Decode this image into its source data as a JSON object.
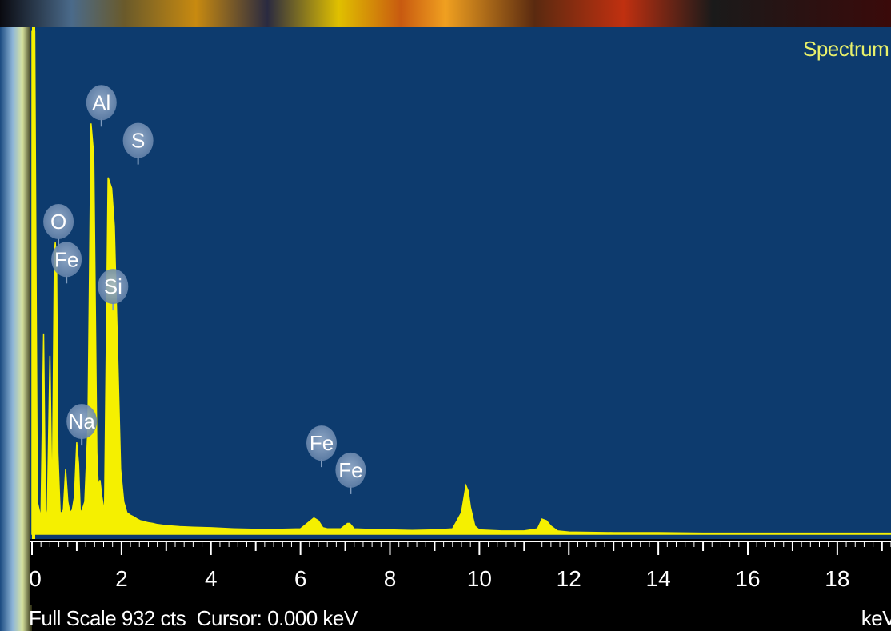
{
  "spectrum_label": "Spectrum",
  "footer": {
    "full_scale_text": "Full Scale 932 cts",
    "cursor_text": "Cursor: 0.000 keV",
    "unit_text": "keV"
  },
  "colors": {
    "plot_background": "#0d3b6e",
    "spectrum_fill": "#f5f000",
    "spectrum_label": "#e8f06a",
    "tag_fill": "#7f9bbd",
    "axis_text": "#ffffff"
  },
  "chart_data": {
    "type": "area",
    "title": "",
    "xlabel": "keV",
    "ylabel": "",
    "xlim": [
      0,
      19.2
    ],
    "ylim": [
      0,
      932
    ],
    "x_ticks": [
      0,
      2,
      4,
      6,
      8,
      10,
      12,
      14,
      16,
      18
    ],
    "series": [
      {
        "x": [
          0,
          0.06,
          0.12,
          0.2,
          0.26,
          0.3,
          0.34,
          0.4,
          0.45,
          0.5,
          0.52,
          0.55,
          0.58,
          0.63,
          0.67,
          0.7,
          0.75,
          0.8,
          0.85,
          0.9,
          0.95,
          1.0,
          1.04,
          1.08,
          1.12,
          1.18,
          1.25,
          1.32,
          1.38,
          1.45,
          1.48,
          1.52,
          1.56,
          1.62,
          1.7,
          1.74,
          1.78,
          1.84,
          1.9,
          1.98,
          2.05,
          2.12,
          2.2,
          2.28,
          2.35,
          2.42,
          2.5,
          2.56,
          2.62,
          2.7,
          2.8,
          3.0,
          3.3,
          3.6,
          4.0,
          4.5,
          5.0,
          5.5,
          6.0,
          6.3,
          6.4,
          6.5,
          6.6,
          6.9,
          7.05,
          7.1,
          7.2,
          7.5,
          8.0,
          8.5,
          9.0,
          9.4,
          9.6,
          9.7,
          9.75,
          9.8,
          9.9,
          10.0,
          10.5,
          11.0,
          11.3,
          11.4,
          11.5,
          11.6,
          11.75,
          12.0,
          13.0,
          14.0,
          15.0,
          16.0,
          17.0,
          18.0,
          19.2
        ],
        "y": [
          930,
          930,
          60,
          30,
          370,
          50,
          25,
          330,
          40,
          520,
          540,
          500,
          150,
          40,
          40,
          45,
          120,
          60,
          40,
          45,
          70,
          170,
          130,
          40,
          45,
          60,
          200,
          760,
          700,
          150,
          90,
          100,
          70,
          40,
          660,
          650,
          640,
          570,
          380,
          120,
          60,
          40,
          35,
          32,
          28,
          25,
          24,
          22,
          21,
          20,
          18,
          16,
          14,
          13,
          12,
          10,
          9,
          9,
          10,
          30,
          25,
          12,
          10,
          10,
          20,
          20,
          10,
          9,
          8,
          7,
          8,
          10,
          40,
          90,
          80,
          50,
          15,
          8,
          6,
          6,
          10,
          28,
          25,
          15,
          6,
          4,
          3,
          3,
          2,
          2,
          2,
          2,
          2
        ]
      }
    ],
    "peak_labels": [
      {
        "text": "O",
        "x": 0.52,
        "y": 540
      },
      {
        "text": "Fe",
        "x": 0.7,
        "y": 470
      },
      {
        "text": "Al",
        "x": 1.48,
        "y": 760
      },
      {
        "text": "S",
        "x": 2.3,
        "y": 690
      },
      {
        "text": "Si",
        "x": 1.74,
        "y": 420
      },
      {
        "text": "Na",
        "x": 1.04,
        "y": 170
      },
      {
        "text": "Fe",
        "x": 6.4,
        "y": 130
      },
      {
        "text": "Fe",
        "x": 7.05,
        "y": 80
      }
    ]
  }
}
